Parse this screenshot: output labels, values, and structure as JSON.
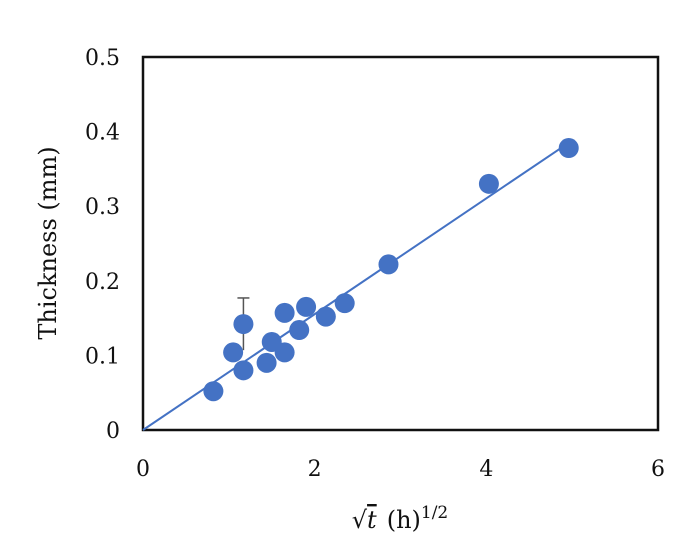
{
  "chart_data": {
    "type": "scatter",
    "title": "",
    "xlabel": "√t (h)^1/2",
    "xlabel_parts": {
      "sqrt": "√",
      "var": "t",
      "unit": "(h)",
      "exponent": "1/2"
    },
    "ylabel": "Thickness (mm)",
    "xlim": [
      0,
      6
    ],
    "ylim": [
      0,
      0.5
    ],
    "xticks": [
      "0",
      "2",
      "4",
      "6"
    ],
    "yticks": [
      "0",
      "0.1",
      "0.2",
      "0.3",
      "0.4",
      "0.5"
    ],
    "grid": false,
    "legend": "none",
    "series": [
      {
        "points": [
          {
            "x": 0.82,
            "y": 0.052
          },
          {
            "x": 1.05,
            "y": 0.104
          },
          {
            "x": 1.17,
            "y": 0.142,
            "error": 0.035
          },
          {
            "x": 1.17,
            "y": 0.08
          },
          {
            "x": 1.44,
            "y": 0.09
          },
          {
            "x": 1.5,
            "y": 0.118
          },
          {
            "x": 1.65,
            "y": 0.104
          },
          {
            "x": 1.65,
            "y": 0.157
          },
          {
            "x": 1.82,
            "y": 0.134
          },
          {
            "x": 1.9,
            "y": 0.165
          },
          {
            "x": 2.13,
            "y": 0.152
          },
          {
            "x": 2.35,
            "y": 0.17
          },
          {
            "x": 2.86,
            "y": 0.222
          },
          {
            "x": 4.03,
            "y": 0.33
          },
          {
            "x": 4.96,
            "y": 0.378
          }
        ],
        "color": "#4472C4"
      }
    ],
    "trendline": {
      "type": "linear",
      "x_range": [
        0,
        4.96
      ],
      "y_range": [
        0,
        0.385
      ],
      "color": "#4472C4"
    }
  }
}
